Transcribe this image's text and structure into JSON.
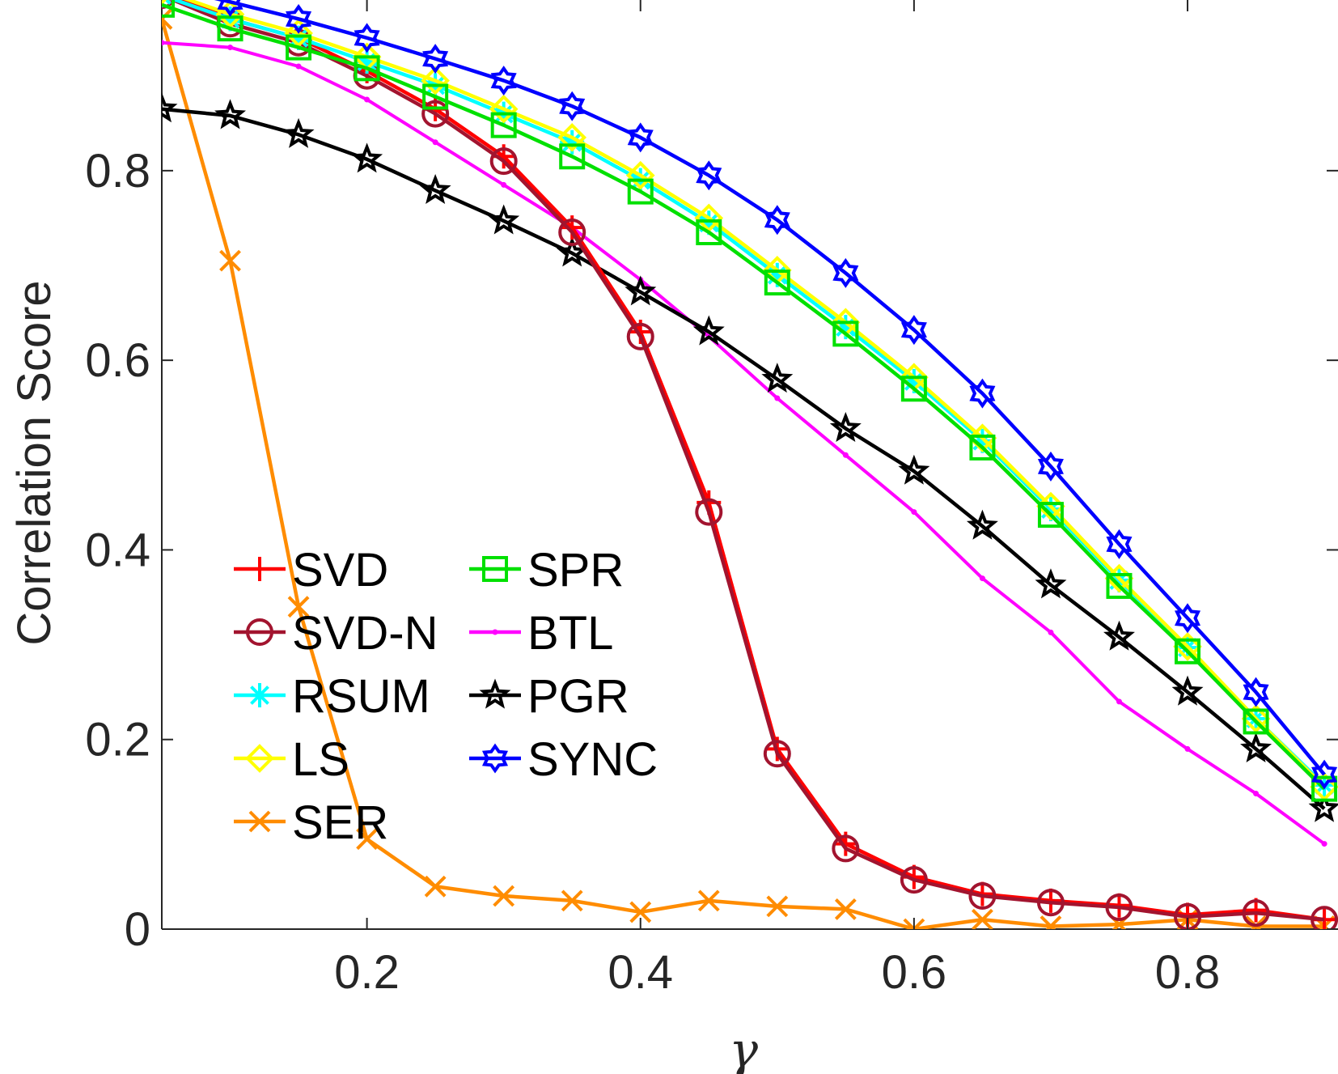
{
  "chart_data": {
    "type": "line",
    "title": "",
    "xlabel": "γ",
    "ylabel": "Correlation Score",
    "xlim": [
      0.05,
      0.91
    ],
    "ylim": [
      0,
      0.98
    ],
    "xticks": [
      0.2,
      0.4,
      0.6,
      0.8
    ],
    "xtick_labels": [
      "0.2",
      "0.4",
      "0.6",
      "0.8"
    ],
    "yticks": [
      0,
      0.2,
      0.4,
      0.6,
      0.8
    ],
    "ytick_labels": [
      "0",
      "0.2",
      "0.4",
      "0.6",
      "0.8"
    ],
    "x": [
      0.05,
      0.1,
      0.15,
      0.2,
      0.25,
      0.3,
      0.35,
      0.4,
      0.45,
      0.5,
      0.55,
      0.6,
      0.65,
      0.7,
      0.75,
      0.8,
      0.85,
      0.9
    ],
    "legend_position": "lower-left",
    "series": [
      {
        "name": "SVD",
        "color": "#ff0000",
        "marker": "plus",
        "values": [
          0.99,
          0.96,
          0.94,
          0.905,
          0.865,
          0.815,
          0.74,
          0.63,
          0.45,
          0.19,
          0.09,
          0.055,
          0.037,
          0.03,
          0.025,
          0.015,
          0.02,
          0.01
        ]
      },
      {
        "name": "SVD-N",
        "color": "#a2142f",
        "marker": "circle",
        "values": [
          0.985,
          0.955,
          0.935,
          0.9,
          0.86,
          0.81,
          0.735,
          0.625,
          0.44,
          0.185,
          0.085,
          0.052,
          0.035,
          0.028,
          0.023,
          0.013,
          0.017,
          0.01
        ]
      },
      {
        "name": "RSUM",
        "color": "#00ffff",
        "marker": "asterisk",
        "values": [
          0.985,
          0.96,
          0.94,
          0.915,
          0.89,
          0.86,
          0.83,
          0.79,
          0.745,
          0.69,
          0.635,
          0.578,
          0.515,
          0.443,
          0.368,
          0.297,
          0.222,
          0.152
        ]
      },
      {
        "name": "LS",
        "color": "#ffff00",
        "marker": "diamond",
        "values": [
          0.99,
          0.965,
          0.945,
          0.92,
          0.895,
          0.865,
          0.835,
          0.795,
          0.75,
          0.695,
          0.64,
          0.582,
          0.518,
          0.446,
          0.37,
          0.298,
          0.222,
          0.15
        ]
      },
      {
        "name": "SER",
        "color": "#ff8c00",
        "marker": "x",
        "values": [
          0.96,
          0.705,
          0.34,
          0.095,
          0.045,
          0.035,
          0.03,
          0.018,
          0.03,
          0.024,
          0.021,
          0.0,
          0.01,
          0.003,
          0.005,
          0.01,
          0.003,
          0.003
        ]
      },
      {
        "name": "SPR",
        "color": "#00e000",
        "marker": "square",
        "values": [
          0.975,
          0.95,
          0.93,
          0.908,
          0.878,
          0.848,
          0.815,
          0.778,
          0.735,
          0.682,
          0.628,
          0.57,
          0.508,
          0.437,
          0.362,
          0.293,
          0.219,
          0.148
        ]
      },
      {
        "name": "BTL",
        "color": "#ff00ff",
        "marker": "dot",
        "values": [
          0.935,
          0.93,
          0.91,
          0.875,
          0.83,
          0.785,
          0.74,
          0.685,
          0.625,
          0.56,
          0.5,
          0.44,
          0.37,
          0.313,
          0.24,
          0.19,
          0.143,
          0.09
        ]
      },
      {
        "name": "PGR",
        "color": "#000000",
        "marker": "pentagram",
        "values": [
          0.865,
          0.858,
          0.838,
          0.812,
          0.779,
          0.747,
          0.713,
          0.672,
          0.63,
          0.58,
          0.528,
          0.483,
          0.425,
          0.363,
          0.308,
          0.25,
          0.19,
          0.127
        ]
      },
      {
        "name": "SYNC",
        "color": "#0000ff",
        "marker": "hexagram",
        "values": [
          0.995,
          0.978,
          0.96,
          0.94,
          0.918,
          0.895,
          0.868,
          0.835,
          0.795,
          0.748,
          0.692,
          0.632,
          0.565,
          0.488,
          0.406,
          0.328,
          0.25,
          0.163
        ]
      }
    ]
  }
}
